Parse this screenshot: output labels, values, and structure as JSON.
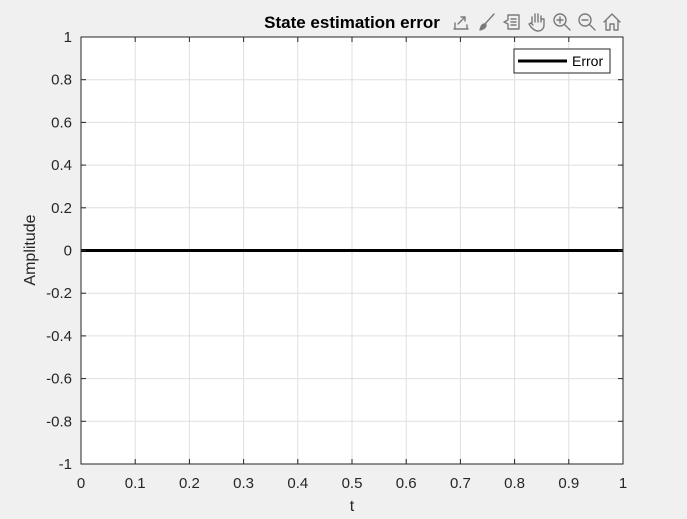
{
  "chart_data": {
    "type": "line",
    "title": "State estimation error",
    "xlabel": "t",
    "ylabel": "Amplitude",
    "xlim": [
      0,
      1
    ],
    "ylim": [
      -1,
      1
    ],
    "xticks": [
      0,
      0.1,
      0.2,
      0.3,
      0.4,
      0.5,
      0.6,
      0.7,
      0.8,
      0.9,
      1
    ],
    "xtick_labels": [
      "0",
      "0.1",
      "0.2",
      "0.3",
      "0.4",
      "0.5",
      "0.6",
      "0.7",
      "0.8",
      "0.9",
      "1"
    ],
    "yticks": [
      -1,
      -0.8,
      -0.6,
      -0.4,
      -0.2,
      0,
      0.2,
      0.4,
      0.6,
      0.8,
      1
    ],
    "ytick_labels": [
      "-1",
      "-0.8",
      "-0.6",
      "-0.4",
      "-0.2",
      "0",
      "0.2",
      "0.4",
      "0.6",
      "0.8",
      "1"
    ],
    "grid": true,
    "legend_position": "top-right",
    "series": [
      {
        "name": "Error",
        "color": "#000000",
        "x": [
          0,
          1
        ],
        "y": [
          0,
          0
        ]
      }
    ]
  },
  "colors": {
    "figure_background": "#f0f0f0",
    "axes_background": "#ffffff",
    "grid": "#dfdfdf",
    "axis": "#262626",
    "toolbar_icon": "#7a7a7a"
  },
  "toolbar": {
    "icons": [
      "export-icon",
      "brush-icon",
      "data-tips-icon",
      "pan-hand-icon",
      "zoom-in-icon",
      "zoom-out-icon",
      "home-icon"
    ]
  }
}
